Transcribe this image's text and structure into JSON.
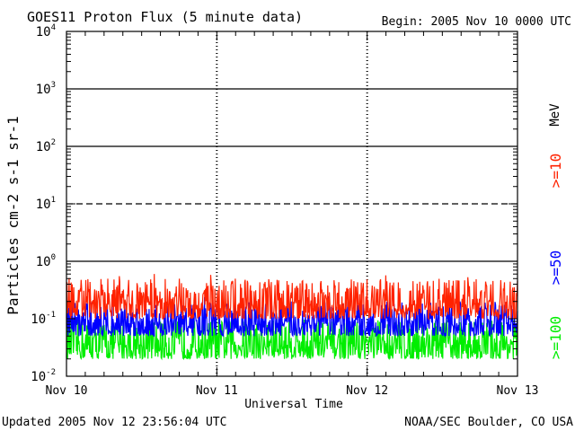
{
  "header": {
    "title": "GOES11 Proton Flux (5 minute data)",
    "begin": "Begin: 2005 Nov 10 0000 UTC"
  },
  "footer": {
    "updated": "Updated 2005 Nov 12 23:56:04 UTC",
    "source": "NOAA/SEC Boulder, CO USA"
  },
  "chart_data": {
    "type": "line",
    "title": "GOES11 Proton Flux (5 minute data)",
    "xlabel": "Universal Time",
    "ylabel": "Particles cm-2 s-1 sr-1",
    "y_scale": "log",
    "ylim": [
      0.01,
      10000
    ],
    "y_tick_labels": [
      {
        "base": "10",
        "exp": "-2",
        "value": 0.01
      },
      {
        "base": "10",
        "exp": "-1",
        "value": 0.1
      },
      {
        "base": "10",
        "exp": "0",
        "value": 1
      },
      {
        "base": "10",
        "exp": "1",
        "value": 10
      },
      {
        "base": "10",
        "exp": "2",
        "value": 100
      },
      {
        "base": "10",
        "exp": "3",
        "value": 1000
      },
      {
        "base": "10",
        "exp": "4",
        "value": 10000
      }
    ],
    "x_tick_labels": [
      "Nov 10",
      "Nov 11",
      "Nov 12",
      "Nov 13"
    ],
    "reference_lines": [
      {
        "value": 1,
        "style": "solid"
      },
      {
        "value": 10,
        "style": "dashed"
      },
      {
        "value": 100,
        "style": "solid"
      },
      {
        "value": 1000,
        "style": "solid"
      }
    ],
    "legend_placement": "right, rotated",
    "legend_unit": "MeV",
    "series": [
      {
        "name": ">=10",
        "color": "#ff2200",
        "typical_range": [
          0.1,
          0.5
        ]
      },
      {
        "name": ">=50",
        "color": "#0000ff",
        "typical_range": [
          0.05,
          0.2
        ]
      },
      {
        "name": ">=100",
        "color": "#00ee00",
        "typical_range": [
          0.02,
          0.1
        ]
      }
    ]
  }
}
